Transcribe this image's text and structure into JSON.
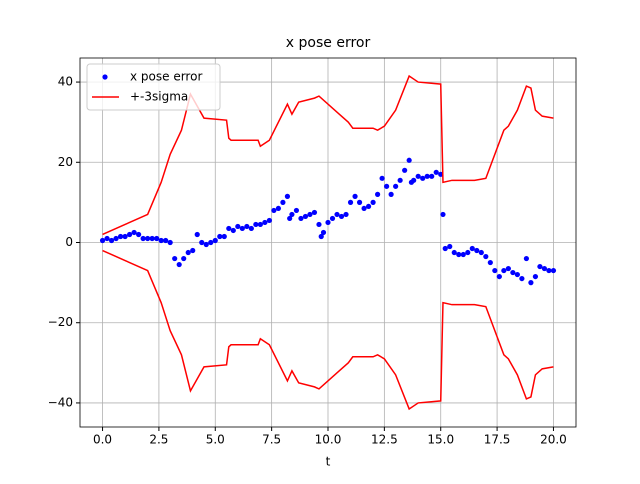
{
  "chart_data": {
    "type": "scatter-line",
    "title": "x pose error",
    "x_label": "t",
    "xlim": [
      -1,
      21
    ],
    "ylim": [
      -46,
      46
    ],
    "xticks": [
      {
        "value": 0,
        "label": "0.0"
      },
      {
        "value": 2.5,
        "label": "2.5"
      },
      {
        "value": 5,
        "label": "5.0"
      },
      {
        "value": 7.5,
        "label": "7.5"
      },
      {
        "value": 10,
        "label": "10.0"
      },
      {
        "value": 12.5,
        "label": "12.5"
      },
      {
        "value": 15,
        "label": "15.0"
      },
      {
        "value": 17.5,
        "label": "17.5"
      },
      {
        "value": 20,
        "label": "20.0"
      }
    ],
    "yticks": [
      {
        "value": -40,
        "label": "−40"
      },
      {
        "value": -20,
        "label": "−20"
      },
      0,
      20,
      40
    ],
    "grid": true,
    "legend": "upper left",
    "series": [
      {
        "name": "x pose error",
        "kind": "points",
        "color": "#0000ff",
        "x": [
          0,
          0.2,
          0.4,
          0.6,
          0.8,
          1.0,
          1.2,
          1.4,
          1.6,
          1.8,
          2.0,
          2.2,
          2.4,
          2.6,
          2.8,
          3.0,
          3.2,
          3.4,
          3.6,
          3.8,
          4.0,
          4.2,
          4.4,
          4.6,
          4.8,
          5.0,
          5.2,
          5.4,
          5.6,
          5.8,
          6.0,
          6.2,
          6.4,
          6.6,
          6.8,
          7.0,
          7.2,
          7.4,
          7.6,
          7.8,
          8.0,
          8.2,
          8.3,
          8.4,
          8.6,
          8.8,
          9.0,
          9.2,
          9.4,
          9.6,
          9.7,
          9.8,
          10.0,
          10.2,
          10.4,
          10.6,
          10.8,
          11.0,
          11.2,
          11.4,
          11.6,
          11.8,
          12.0,
          12.2,
          12.4,
          12.6,
          12.8,
          13.0,
          13.2,
          13.4,
          13.6,
          13.7,
          13.8,
          14.0,
          14.2,
          14.4,
          14.6,
          14.8,
          15.0,
          15.1,
          15.2,
          15.4,
          15.6,
          15.8,
          16.0,
          16.2,
          16.4,
          16.6,
          16.8,
          17.0,
          17.2,
          17.4,
          17.6,
          17.8,
          18.0,
          18.2,
          18.4,
          18.6,
          18.8,
          19.0,
          19.2,
          19.4,
          19.6,
          19.8,
          20.0
        ],
        "values": [
          0.5,
          1,
          0.5,
          1,
          1.5,
          1.5,
          2,
          2.5,
          2,
          1,
          1,
          1,
          1,
          0.5,
          0.5,
          0,
          -4,
          -5.5,
          -4,
          -2.5,
          -2,
          2,
          0,
          -0.5,
          0,
          0.5,
          1.5,
          1.5,
          3.5,
          3,
          4,
          3.5,
          4,
          3.5,
          4.5,
          4.5,
          5,
          5.5,
          8,
          8.5,
          10,
          11.5,
          6,
          7,
          8,
          6,
          6.5,
          7,
          7.5,
          4.5,
          1.5,
          2.5,
          5,
          6,
          7,
          6.5,
          7,
          10,
          11.5,
          10,
          8.5,
          9,
          10,
          12,
          16,
          14,
          12,
          14,
          15.5,
          18,
          20.5,
          15,
          15.5,
          16.5,
          16,
          16.5,
          16.5,
          17.5,
          17,
          7,
          -1.5,
          -1,
          -2.5,
          -3,
          -3,
          -2.5,
          -1.5,
          -2,
          -2.5,
          -3.5,
          -5,
          -7,
          -8.5,
          -7,
          -6.5,
          -7.5,
          -8,
          -9,
          -4,
          -10,
          -8.5,
          -6,
          -6.5,
          -7,
          -7
        ]
      },
      {
        "name": "+-3sigma",
        "kind": "line",
        "color": "#ff0000",
        "x": [
          0,
          1,
          2,
          2.6,
          3,
          3.5,
          3.9,
          4.5,
          5.5,
          5.6,
          5.7,
          6.9,
          7.0,
          7.4,
          8.2,
          8.4,
          8.7,
          9.4,
          9.6,
          10.5,
          10.9,
          11.1,
          12.0,
          12.2,
          12.5,
          13.0,
          13.6,
          14.0,
          15.0,
          15.1,
          15.5,
          16.5,
          17.0,
          17.8,
          18.0,
          18.4,
          18.8,
          19.0,
          19.2,
          19.5,
          20.0
        ],
        "values": [
          2,
          4.5,
          7,
          15,
          22,
          28,
          37,
          31,
          30.5,
          26,
          25.5,
          25.5,
          24,
          25.5,
          34.5,
          32,
          35,
          36,
          36.5,
          32,
          30,
          28.5,
          28.5,
          28,
          29,
          33,
          41.5,
          40,
          39.5,
          15,
          15.5,
          15.5,
          16,
          28,
          29,
          33,
          39,
          38.5,
          33,
          31.5,
          31
        ]
      },
      {
        "kind": "line",
        "color": "#ff0000",
        "x": [
          0,
          1,
          2,
          2.6,
          3,
          3.5,
          3.9,
          4.5,
          5.5,
          5.6,
          5.7,
          6.9,
          7.0,
          7.4,
          8.2,
          8.4,
          8.7,
          9.4,
          9.6,
          10.5,
          10.9,
          11.1,
          12.0,
          12.2,
          12.5,
          13.0,
          13.6,
          14.0,
          15.0,
          15.1,
          15.5,
          16.5,
          17.0,
          17.8,
          18.0,
          18.4,
          18.8,
          19.0,
          19.2,
          19.5,
          20.0
        ],
        "values": [
          -2,
          -4.5,
          -7,
          -15,
          -22,
          -28,
          -37,
          -31,
          -30.5,
          -26,
          -25.5,
          -25.5,
          -24,
          -25.5,
          -34.5,
          -32,
          -35,
          -36,
          -36.5,
          -32,
          -30,
          -28.5,
          -28.5,
          -28,
          -29,
          -33,
          -41.5,
          -40,
          -39.5,
          -15,
          -15.5,
          -15.5,
          -16,
          -28,
          -29,
          -33,
          -39,
          -38.5,
          -33,
          -31.5,
          -31
        ]
      }
    ]
  }
}
